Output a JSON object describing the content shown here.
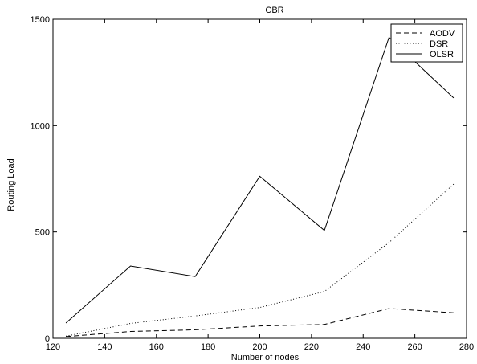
{
  "chart_data": {
    "type": "line",
    "title": "CBR",
    "xlabel": "Number of nodes",
    "ylabel": "Routing Load",
    "xlim": [
      120,
      280
    ],
    "ylim": [
      0,
      1500
    ],
    "xticks": [
      120,
      140,
      160,
      180,
      200,
      220,
      240,
      260,
      280
    ],
    "yticks": [
      0,
      500,
      1000,
      1500
    ],
    "grid": false,
    "legend_position": "top-right",
    "series": [
      {
        "name": "AODV",
        "style": "dashed",
        "color": "#000000",
        "x": [
          125,
          150,
          175,
          200,
          225,
          250,
          275
        ],
        "y": [
          8,
          32,
          40,
          58,
          65,
          140,
          120
        ]
      },
      {
        "name": "DSR",
        "style": "dotted",
        "color": "#000000",
        "x": [
          125,
          150,
          175,
          200,
          225,
          250,
          275
        ],
        "y": [
          10,
          70,
          105,
          145,
          220,
          450,
          725
        ]
      },
      {
        "name": "OLSR",
        "style": "solid",
        "color": "#000000",
        "x": [
          125,
          150,
          175,
          200,
          225,
          250,
          275
        ],
        "y": [
          72,
          340,
          290,
          762,
          507,
          1415,
          1130
        ]
      }
    ]
  }
}
